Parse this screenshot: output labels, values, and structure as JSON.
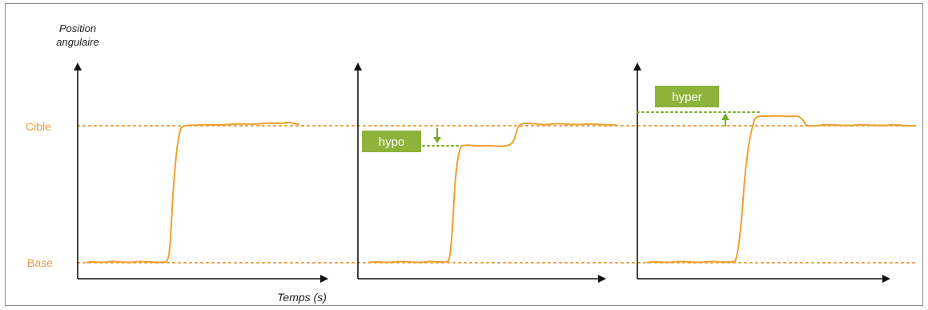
{
  "y_axis_title_line1": "Position",
  "y_axis_title_line2": "angulaire",
  "x_axis_title": "Temps (s)",
  "level_labels": {
    "target": "Cible",
    "base": "Base"
  },
  "annotations": {
    "hypo": "hypo",
    "hyper": "hyper"
  },
  "colors": {
    "trace": "#f0a030",
    "level_line": "#e8a040",
    "level_text": "#e8a040",
    "badge_bg": "#8db33a",
    "badge_text": "#ffffff",
    "arrow": "#7aaa2e",
    "axis": "#111111",
    "frame": "#8a8a8a"
  },
  "panels": [
    {
      "name": "normal",
      "annotation": null
    },
    {
      "name": "hypometric",
      "annotation": "hypo"
    },
    {
      "name": "hypermetric",
      "annotation": "hyper"
    }
  ]
}
